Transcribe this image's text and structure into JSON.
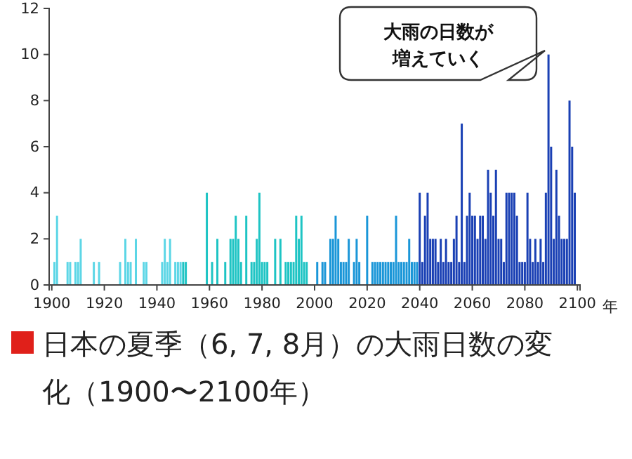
{
  "chart_data": {
    "type": "bar",
    "title": "日本の夏季（6, 7, 8月）の大雨日数の変化（1900〜2100年）",
    "xlabel": "年",
    "xlim": [
      1899,
      2101
    ],
    "xticks": [
      1900,
      1920,
      1940,
      1960,
      1980,
      2000,
      2020,
      2040,
      2060,
      2080,
      2100
    ],
    "ylim": [
      0,
      12
    ],
    "yticks": [
      0,
      2,
      4,
      6,
      8,
      10,
      12
    ],
    "grid": false,
    "annotations": [
      "大雨の日数が増えていく"
    ],
    "series": [
      {
        "color": "#5cd6e6",
        "x": [
          1900,
          1901,
          1902,
          1903,
          1904,
          1905,
          1906,
          1907,
          1908,
          1909,
          1910,
          1911,
          1912,
          1913,
          1914,
          1915,
          1916,
          1917,
          1918,
          1919,
          1920,
          1921,
          1922,
          1923,
          1924,
          1925,
          1926,
          1927,
          1928,
          1929,
          1930,
          1931,
          1932,
          1933,
          1934,
          1935,
          1936,
          1937,
          1938,
          1939,
          1940,
          1941,
          1942,
          1943,
          1944,
          1945,
          1946,
          1947,
          1948,
          1949
        ],
        "values": [
          0,
          1,
          3,
          0,
          0,
          0,
          1,
          1,
          0,
          1,
          1,
          2,
          0,
          0,
          0,
          0,
          1,
          0,
          1,
          0,
          0,
          0,
          0,
          0,
          0,
          0,
          1,
          0,
          2,
          1,
          1,
          0,
          2,
          0,
          0,
          1,
          1,
          0,
          0,
          0,
          0,
          0,
          1,
          2,
          1,
          2,
          0,
          1,
          1,
          1
        ]
      },
      {
        "color": "#1ec4c4",
        "x": [
          1950,
          1951,
          1952,
          1953,
          1954,
          1955,
          1956,
          1957,
          1958,
          1959,
          1960,
          1961,
          1962,
          1963,
          1964,
          1965,
          1966,
          1967,
          1968,
          1969,
          1970,
          1971,
          1972,
          1973,
          1974,
          1975,
          1976,
          1977,
          1978,
          1979,
          1980,
          1981,
          1982,
          1983,
          1984,
          1985,
          1986,
          1987,
          1988,
          1989,
          1990,
          1991,
          1992,
          1993,
          1994,
          1995,
          1996,
          1997,
          1998,
          1999
        ],
        "values": [
          1,
          1,
          0,
          0,
          0,
          0,
          0,
          0,
          0,
          4,
          0,
          1,
          0,
          2,
          0,
          0,
          1,
          0,
          2,
          2,
          3,
          2,
          1,
          0,
          3,
          0,
          1,
          1,
          2,
          4,
          1,
          1,
          1,
          0,
          0,
          2,
          0,
          2,
          0,
          1,
          1,
          1,
          1,
          3,
          2,
          3,
          1,
          1,
          0,
          0
        ]
      },
      {
        "color": "#1a96d8",
        "x": [
          2000,
          2001,
          2002,
          2003,
          2004,
          2005,
          2006,
          2007,
          2008,
          2009,
          2010,
          2011,
          2012,
          2013,
          2014,
          2015,
          2016,
          2017,
          2018,
          2019,
          2020,
          2021,
          2022,
          2023,
          2024,
          2025,
          2026,
          2027,
          2028,
          2029,
          2030,
          2031,
          2032,
          2033,
          2034,
          2035,
          2036,
          2037,
          2038,
          2039
        ],
        "values": [
          0,
          1,
          0,
          1,
          1,
          0,
          2,
          2,
          3,
          2,
          1,
          1,
          1,
          2,
          0,
          1,
          2,
          1,
          0,
          0,
          3,
          0,
          1,
          1,
          1,
          1,
          1,
          1,
          1,
          1,
          1,
          3,
          1,
          1,
          1,
          1,
          2,
          1,
          1,
          1
        ]
      },
      {
        "color": "#1a40b4",
        "x": [
          2040,
          2041,
          2042,
          2043,
          2044,
          2045,
          2046,
          2047,
          2048,
          2049,
          2050,
          2051,
          2052,
          2053,
          2054,
          2055,
          2056,
          2057,
          2058,
          2059,
          2060,
          2061,
          2062,
          2063,
          2064,
          2065,
          2066,
          2067,
          2068,
          2069,
          2070,
          2071,
          2072,
          2073,
          2074,
          2075,
          2076,
          2077,
          2078,
          2079,
          2080,
          2081,
          2082,
          2083,
          2084,
          2085,
          2086,
          2087,
          2088,
          2089,
          2090,
          2091,
          2092,
          2093,
          2094,
          2095,
          2096,
          2097,
          2098,
          2099,
          2100
        ],
        "values": [
          4,
          1,
          3,
          4,
          2,
          2,
          2,
          1,
          2,
          1,
          2,
          1,
          1,
          2,
          3,
          1,
          7,
          1,
          3,
          4,
          3,
          3,
          2,
          3,
          3,
          2,
          5,
          4,
          3,
          5,
          2,
          2,
          1,
          4,
          4,
          4,
          4,
          3,
          1,
          1,
          1,
          4,
          2,
          1,
          2,
          1,
          2,
          1,
          4,
          10,
          6,
          2,
          5,
          3,
          2,
          2,
          2,
          8,
          6,
          4,
          0
        ]
      }
    ]
  }
}
